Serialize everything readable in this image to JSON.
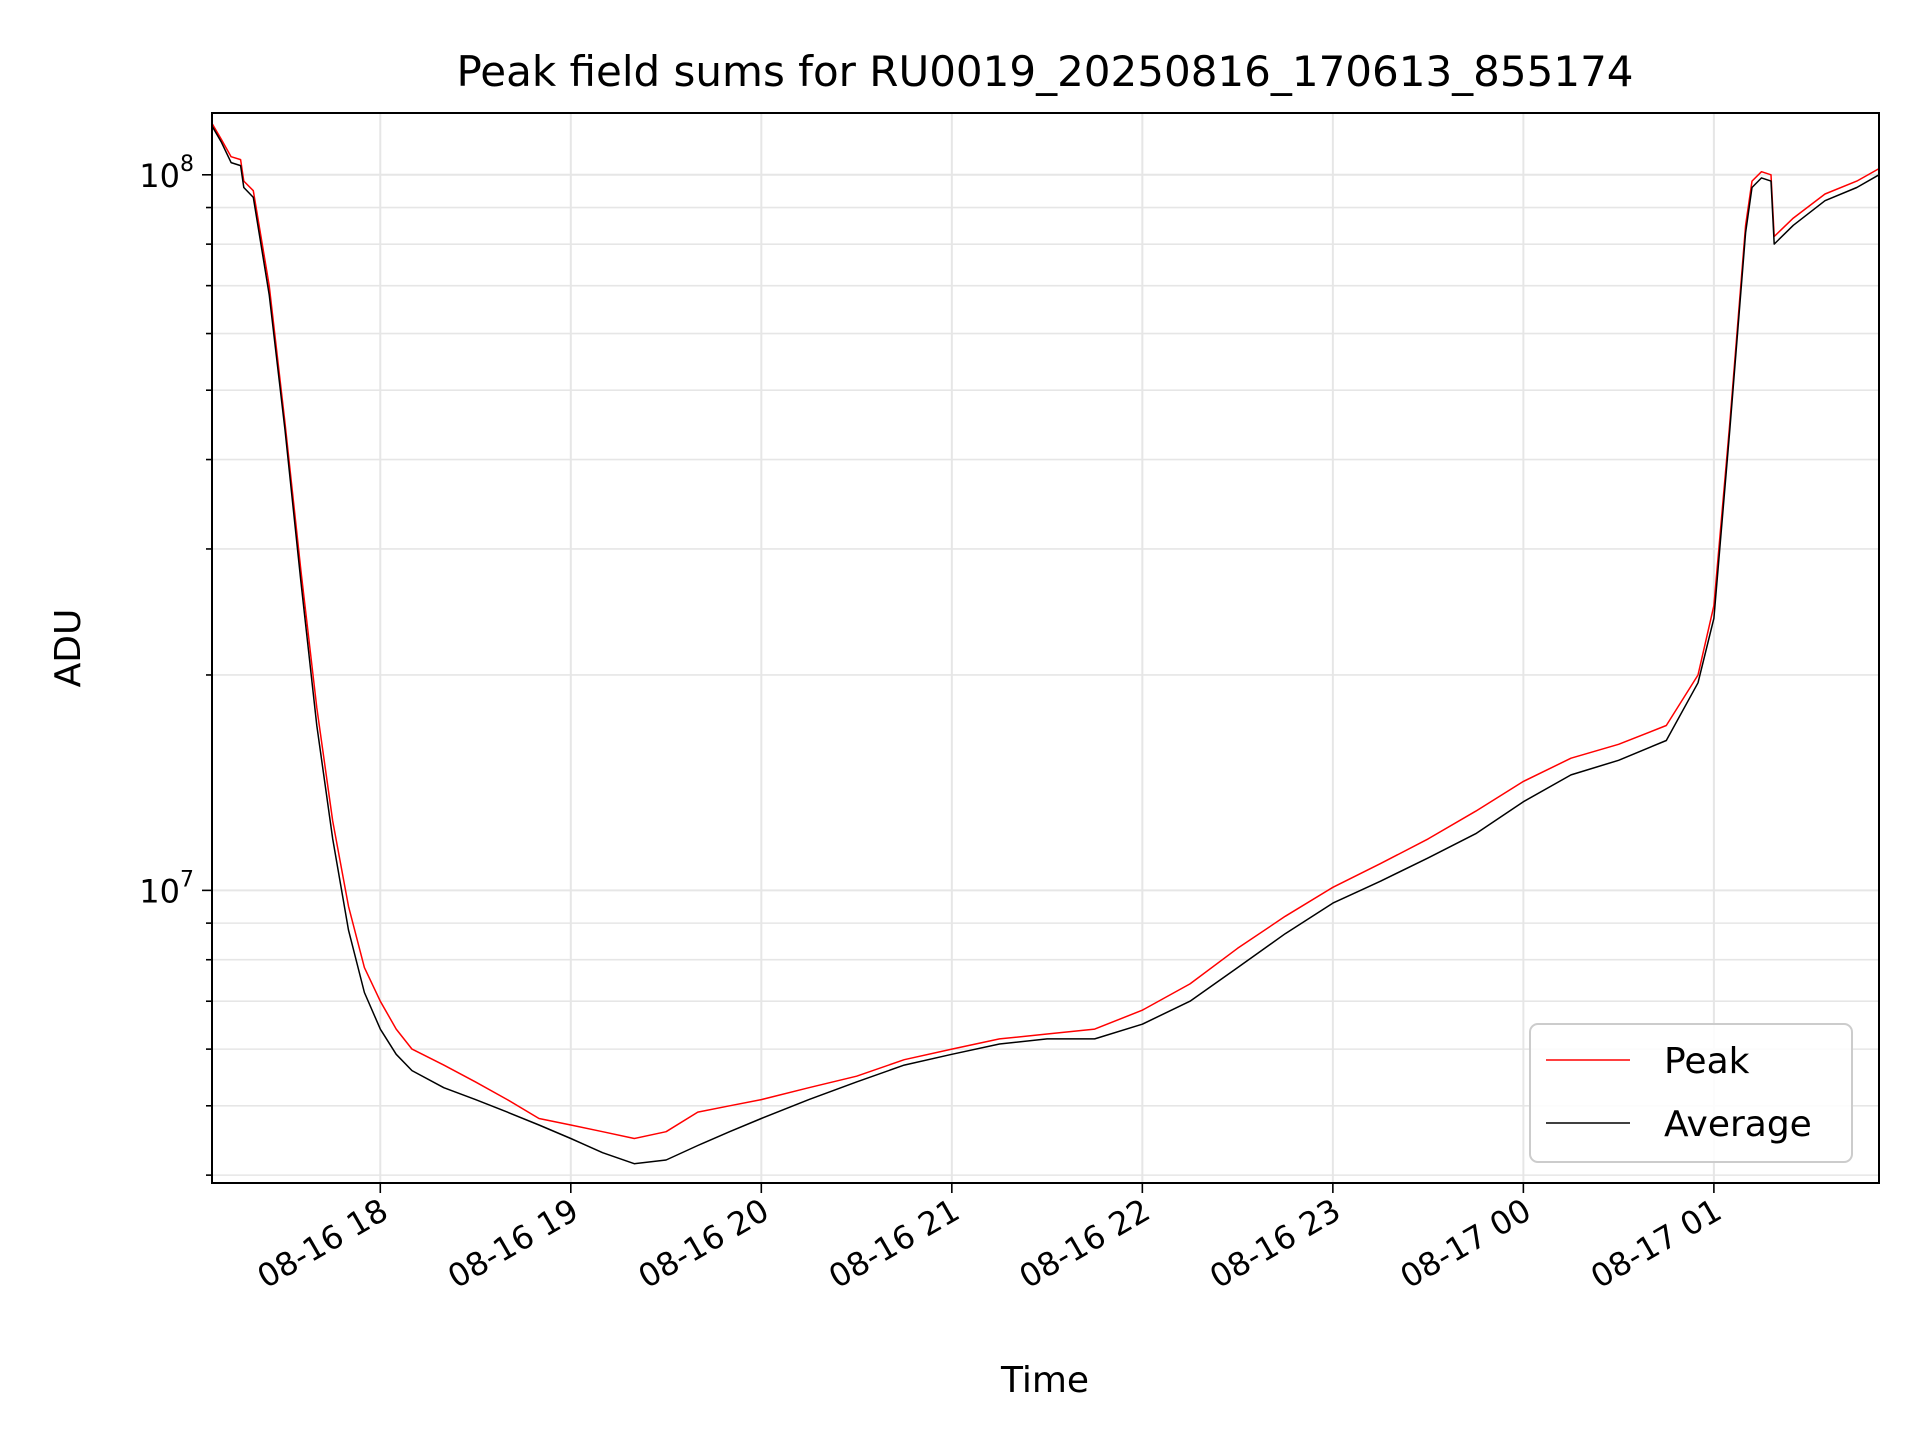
{
  "chart_data": {
    "type": "line",
    "title": "Peak field sums for RU0019_20250816_170613_855174",
    "xlabel": "Time",
    "ylabel": "ADU",
    "x_scale": "time",
    "y_scale": "log",
    "xlim": [
      "2025-08-16 17:07",
      "2025-08-17 01:52"
    ],
    "ylim": [
      3900000,
      122000000
    ],
    "grid": true,
    "legend_position": "lower-right",
    "x_ticks": [
      {
        "t": "2025-08-16 18:00",
        "label": "08-16 18"
      },
      {
        "t": "2025-08-16 19:00",
        "label": "08-16 19"
      },
      {
        "t": "2025-08-16 20:00",
        "label": "08-16 20"
      },
      {
        "t": "2025-08-16 21:00",
        "label": "08-16 21"
      },
      {
        "t": "2025-08-16 22:00",
        "label": "08-16 22"
      },
      {
        "t": "2025-08-16 23:00",
        "label": "08-16 23"
      },
      {
        "t": "2025-08-17 00:00",
        "label": "08-17 00"
      },
      {
        "t": "2025-08-17 01:00",
        "label": "08-17 01"
      }
    ],
    "y_major_ticks": [
      {
        "value": 10000000,
        "base": "10",
        "exp": "7"
      },
      {
        "value": 100000000,
        "base": "10",
        "exp": "8"
      }
    ],
    "series": [
      {
        "name": "Peak",
        "color": "#ff0000",
        "points": [
          [
            "2025-08-16 17:07",
            118000000
          ],
          [
            "2025-08-16 17:10",
            112000000
          ],
          [
            "2025-08-16 17:13",
            106000000
          ],
          [
            "2025-08-16 17:16",
            105000000
          ],
          [
            "2025-08-16 17:17",
            98000000
          ],
          [
            "2025-08-16 17:20",
            95000000
          ],
          [
            "2025-08-16 17:25",
            70000000
          ],
          [
            "2025-08-16 17:30",
            45000000
          ],
          [
            "2025-08-16 17:35",
            28000000
          ],
          [
            "2025-08-16 17:40",
            18000000
          ],
          [
            "2025-08-16 17:45",
            12500000
          ],
          [
            "2025-08-16 17:50",
            9500000
          ],
          [
            "2025-08-16 17:55",
            7800000
          ],
          [
            "2025-08-16 18:00",
            7000000
          ],
          [
            "2025-08-16 18:05",
            6400000
          ],
          [
            "2025-08-16 18:10",
            6000000
          ],
          [
            "2025-08-16 18:20",
            5700000
          ],
          [
            "2025-08-16 18:30",
            5400000
          ],
          [
            "2025-08-16 18:40",
            5100000
          ],
          [
            "2025-08-16 18:50",
            4800000
          ],
          [
            "2025-08-16 19:00",
            4700000
          ],
          [
            "2025-08-16 19:10",
            4600000
          ],
          [
            "2025-08-16 19:20",
            4500000
          ],
          [
            "2025-08-16 19:30",
            4600000
          ],
          [
            "2025-08-16 19:40",
            4900000
          ],
          [
            "2025-08-16 19:50",
            5000000
          ],
          [
            "2025-08-16 20:00",
            5100000
          ],
          [
            "2025-08-16 20:15",
            5300000
          ],
          [
            "2025-08-16 20:30",
            5500000
          ],
          [
            "2025-08-16 20:45",
            5800000
          ],
          [
            "2025-08-16 21:00",
            6000000
          ],
          [
            "2025-08-16 21:15",
            6200000
          ],
          [
            "2025-08-16 21:30",
            6300000
          ],
          [
            "2025-08-16 21:45",
            6400000
          ],
          [
            "2025-08-16 22:00",
            6800000
          ],
          [
            "2025-08-16 22:15",
            7400000
          ],
          [
            "2025-08-16 22:30",
            8300000
          ],
          [
            "2025-08-16 22:45",
            9200000
          ],
          [
            "2025-08-16 23:00",
            10100000
          ],
          [
            "2025-08-16 23:15",
            10900000
          ],
          [
            "2025-08-16 23:30",
            11800000
          ],
          [
            "2025-08-16 23:45",
            12900000
          ],
          [
            "2025-08-17 00:00",
            14200000
          ],
          [
            "2025-08-17 00:15",
            15300000
          ],
          [
            "2025-08-17 00:30",
            16000000
          ],
          [
            "2025-08-17 00:45",
            17000000
          ],
          [
            "2025-08-17 00:55",
            20000000
          ],
          [
            "2025-08-17 01:00",
            25000000
          ],
          [
            "2025-08-17 01:05",
            45000000
          ],
          [
            "2025-08-17 01:10",
            85000000
          ],
          [
            "2025-08-17 01:12",
            98000000
          ],
          [
            "2025-08-17 01:15",
            101000000
          ],
          [
            "2025-08-17 01:18",
            100000000
          ],
          [
            "2025-08-17 01:19",
            82000000
          ],
          [
            "2025-08-17 01:25",
            87000000
          ],
          [
            "2025-08-17 01:35",
            94000000
          ],
          [
            "2025-08-17 01:45",
            98000000
          ],
          [
            "2025-08-17 01:52",
            102000000
          ]
        ]
      },
      {
        "name": "Average",
        "color": "#000000",
        "points": [
          [
            "2025-08-16 17:07",
            117000000
          ],
          [
            "2025-08-16 17:10",
            111000000
          ],
          [
            "2025-08-16 17:13",
            104000000
          ],
          [
            "2025-08-16 17:16",
            103000000
          ],
          [
            "2025-08-16 17:17",
            96000000
          ],
          [
            "2025-08-16 17:20",
            93000000
          ],
          [
            "2025-08-16 17:25",
            68000000
          ],
          [
            "2025-08-16 17:30",
            44000000
          ],
          [
            "2025-08-16 17:35",
            27000000
          ],
          [
            "2025-08-16 17:40",
            17000000
          ],
          [
            "2025-08-16 17:45",
            11800000
          ],
          [
            "2025-08-16 17:50",
            8800000
          ],
          [
            "2025-08-16 17:55",
            7200000
          ],
          [
            "2025-08-16 18:00",
            6400000
          ],
          [
            "2025-08-16 18:05",
            5900000
          ],
          [
            "2025-08-16 18:10",
            5600000
          ],
          [
            "2025-08-16 18:20",
            5300000
          ],
          [
            "2025-08-16 18:30",
            5100000
          ],
          [
            "2025-08-16 18:40",
            4900000
          ],
          [
            "2025-08-16 18:50",
            4700000
          ],
          [
            "2025-08-16 19:00",
            4500000
          ],
          [
            "2025-08-16 19:10",
            4300000
          ],
          [
            "2025-08-16 19:20",
            4150000
          ],
          [
            "2025-08-16 19:30",
            4200000
          ],
          [
            "2025-08-16 19:40",
            4400000
          ],
          [
            "2025-08-16 19:50",
            4600000
          ],
          [
            "2025-08-16 20:00",
            4800000
          ],
          [
            "2025-08-16 20:15",
            5100000
          ],
          [
            "2025-08-16 20:30",
            5400000
          ],
          [
            "2025-08-16 20:45",
            5700000
          ],
          [
            "2025-08-16 21:00",
            5900000
          ],
          [
            "2025-08-16 21:15",
            6100000
          ],
          [
            "2025-08-16 21:30",
            6200000
          ],
          [
            "2025-08-16 21:45",
            6200000
          ],
          [
            "2025-08-16 22:00",
            6500000
          ],
          [
            "2025-08-16 22:15",
            7000000
          ],
          [
            "2025-08-16 22:30",
            7800000
          ],
          [
            "2025-08-16 22:45",
            8700000
          ],
          [
            "2025-08-16 23:00",
            9600000
          ],
          [
            "2025-08-16 23:15",
            10300000
          ],
          [
            "2025-08-16 23:30",
            11100000
          ],
          [
            "2025-08-16 23:45",
            12000000
          ],
          [
            "2025-08-17 00:00",
            13300000
          ],
          [
            "2025-08-17 00:15",
            14500000
          ],
          [
            "2025-08-17 00:30",
            15200000
          ],
          [
            "2025-08-17 00:45",
            16200000
          ],
          [
            "2025-08-17 00:55",
            19500000
          ],
          [
            "2025-08-17 01:00",
            24000000
          ],
          [
            "2025-08-17 01:05",
            44000000
          ],
          [
            "2025-08-17 01:10",
            83000000
          ],
          [
            "2025-08-17 01:12",
            96000000
          ],
          [
            "2025-08-17 01:15",
            99000000
          ],
          [
            "2025-08-17 01:18",
            98000000
          ],
          [
            "2025-08-17 01:19",
            80000000
          ],
          [
            "2025-08-17 01:25",
            85000000
          ],
          [
            "2025-08-17 01:35",
            92000000
          ],
          [
            "2025-08-17 01:45",
            96000000
          ],
          [
            "2025-08-17 01:52",
            100000000
          ]
        ]
      }
    ]
  }
}
